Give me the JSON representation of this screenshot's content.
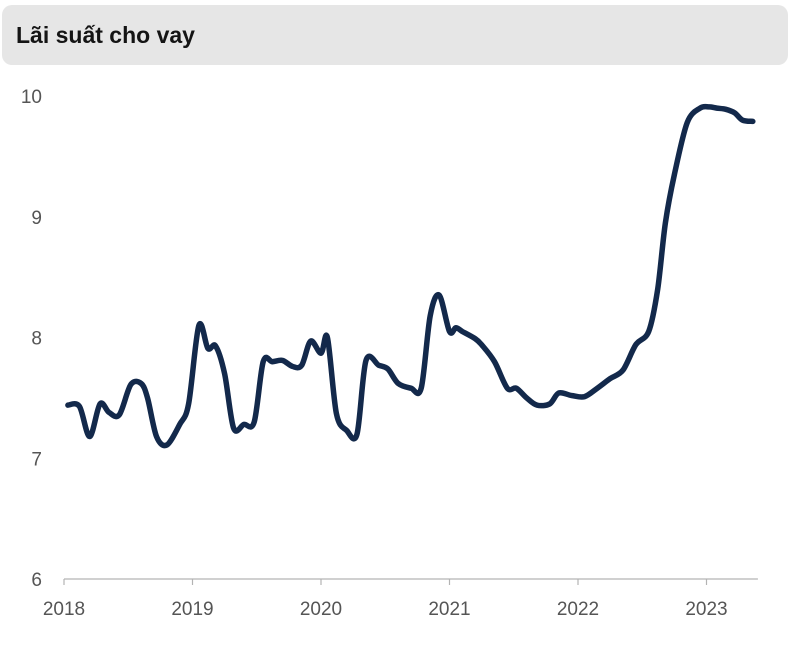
{
  "chart_data": {
    "type": "line",
    "title": "Lãi suất cho vay",
    "xlabel": "",
    "ylabel": "",
    "xlim": [
      2018.0,
      2023.4
    ],
    "ylim": [
      6,
      10
    ],
    "x_ticks": [
      {
        "value": 2018,
        "label": "2018"
      },
      {
        "value": 2019,
        "label": "2019"
      },
      {
        "value": 2020,
        "label": "2020"
      },
      {
        "value": 2021,
        "label": "2021"
      },
      {
        "value": 2022,
        "label": "2022"
      },
      {
        "value": 2023,
        "label": "2023"
      }
    ],
    "y_ticks": [
      {
        "value": 6,
        "label": "6"
      },
      {
        "value": 7,
        "label": "7"
      },
      {
        "value": 8,
        "label": "8"
      },
      {
        "value": 9,
        "label": "9"
      },
      {
        "value": 10,
        "label": "10"
      }
    ],
    "grid": false,
    "line_color": "#13294b",
    "series": [
      {
        "x": [
          2018.03,
          2018.12,
          2018.2,
          2018.28,
          2018.35,
          2018.43,
          2018.52,
          2018.6,
          2018.65,
          2018.72,
          2018.8,
          2018.9,
          2018.97,
          2019.05,
          2019.12,
          2019.18,
          2019.25,
          2019.32,
          2019.4,
          2019.48,
          2019.55,
          2019.62,
          2019.7,
          2019.78,
          2019.85,
          2019.92,
          2020.0,
          2020.05,
          2020.12,
          2020.2,
          2020.28,
          2020.35,
          2020.45,
          2020.52,
          2020.6,
          2020.7,
          2020.78,
          2020.85,
          2020.92,
          2021.0,
          2021.05,
          2021.1,
          2021.2,
          2021.25,
          2021.35,
          2021.45,
          2021.52,
          2021.6,
          2021.68,
          2021.78,
          2021.85,
          2021.95,
          2022.05,
          2022.15,
          2022.25,
          2022.35,
          2022.45,
          2022.55,
          2022.62,
          2022.68,
          2022.75,
          2022.85,
          2022.95,
          2023.02,
          2023.08,
          2023.15,
          2023.22,
          2023.28,
          2023.36
        ],
        "y": [
          7.44,
          7.43,
          7.18,
          7.45,
          7.38,
          7.36,
          7.61,
          7.62,
          7.5,
          7.18,
          7.11,
          7.28,
          7.45,
          8.1,
          7.91,
          7.93,
          7.7,
          7.25,
          7.28,
          7.3,
          7.8,
          7.8,
          7.81,
          7.76,
          7.77,
          7.97,
          7.87,
          8.0,
          7.37,
          7.23,
          7.2,
          7.81,
          7.77,
          7.74,
          7.62,
          7.58,
          7.58,
          8.18,
          8.35,
          8.05,
          8.08,
          8.05,
          7.99,
          7.94,
          7.8,
          7.58,
          7.58,
          7.5,
          7.44,
          7.45,
          7.54,
          7.52,
          7.51,
          7.58,
          7.66,
          7.73,
          7.94,
          8.05,
          8.4,
          8.95,
          9.35,
          9.78,
          9.9,
          9.91,
          9.9,
          9.89,
          9.86,
          9.8,
          9.79
        ]
      }
    ]
  }
}
